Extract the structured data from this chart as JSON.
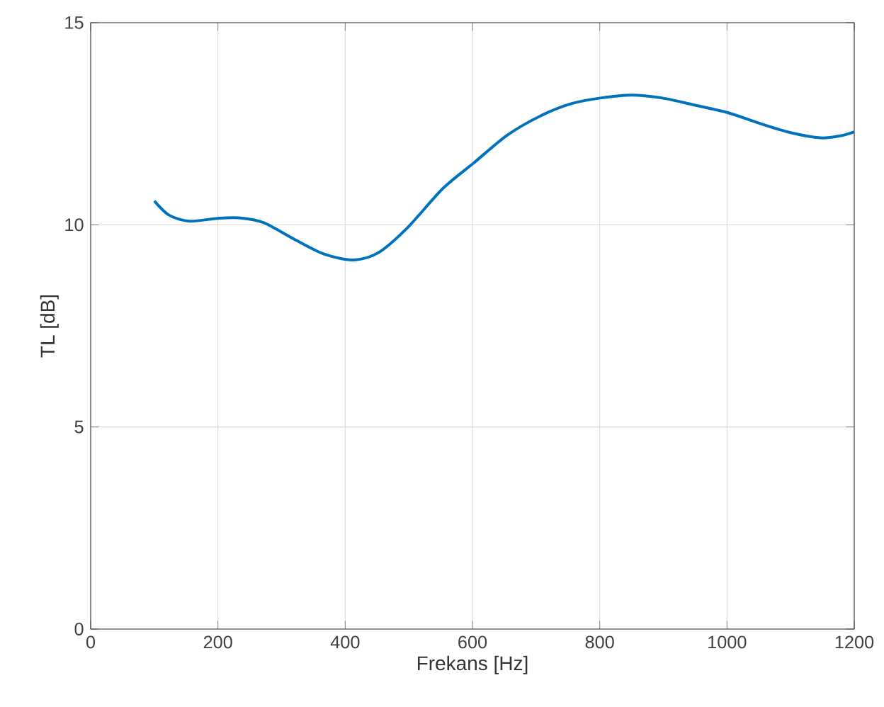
{
  "chart_data": {
    "type": "line",
    "xlabel": "Frekans [Hz]",
    "ylabel": "TL [dB]",
    "xlim": [
      0,
      1200
    ],
    "ylim": [
      0,
      15
    ],
    "xticks": [
      0,
      200,
      400,
      600,
      800,
      1000,
      1200
    ],
    "yticks": [
      0,
      5,
      10,
      15
    ],
    "grid": true,
    "series": [
      {
        "color": "#0072bd",
        "x": [
          100,
          123,
          155,
          200,
          233,
          272,
          319,
          366,
          412,
          452,
          498,
          553,
          602,
          655,
          709,
          756,
          803,
          850,
          897,
          944,
          1002,
          1053,
          1100,
          1147,
          1178,
          1200
        ],
        "values": [
          10.59,
          10.24,
          10.09,
          10.16,
          10.17,
          10.05,
          9.65,
          9.28,
          9.13,
          9.31,
          9.93,
          10.89,
          11.53,
          12.22,
          12.71,
          13.0,
          13.14,
          13.21,
          13.14,
          12.98,
          12.77,
          12.5,
          12.28,
          12.15,
          12.2,
          12.3
        ]
      }
    ]
  }
}
